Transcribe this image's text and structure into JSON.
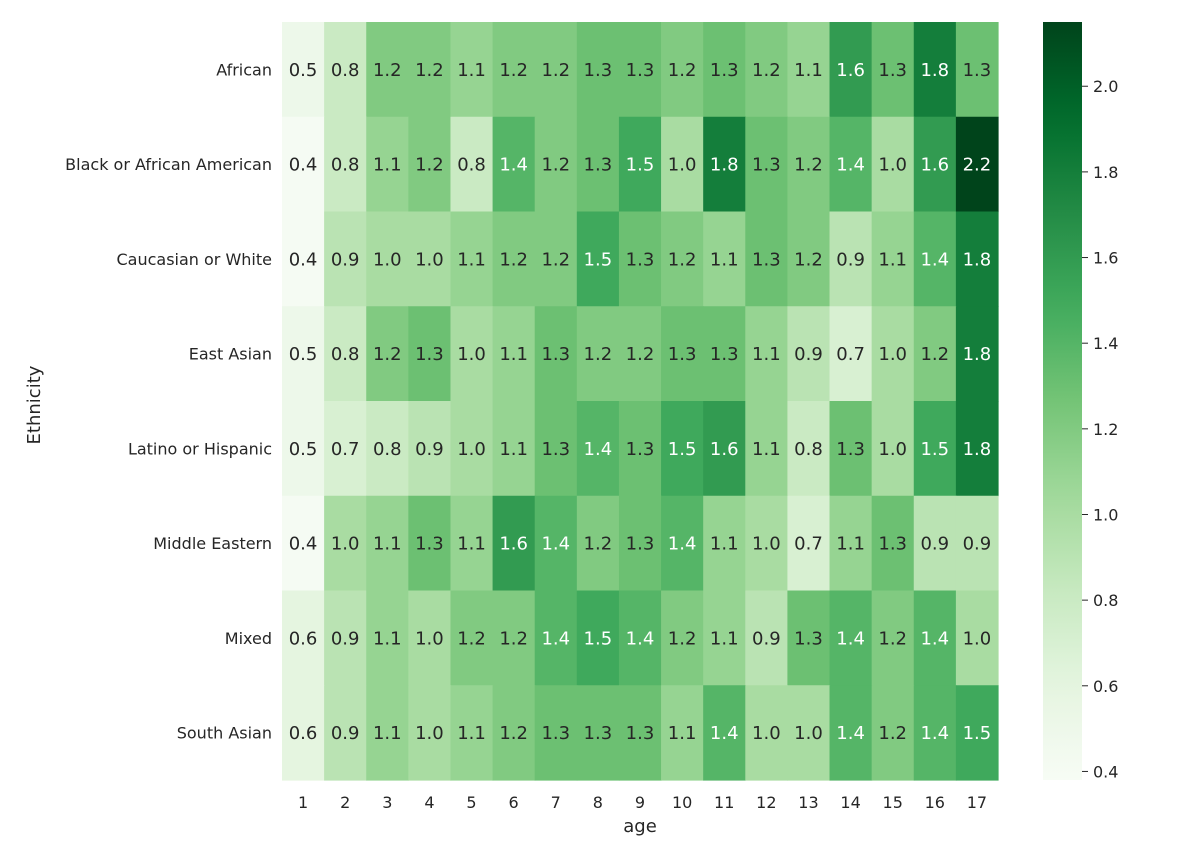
{
  "chart_data": {
    "type": "heatmap",
    "title": "",
    "xlabel": "age",
    "ylabel": "Ethnicity",
    "x_categories": [
      "1",
      "2",
      "3",
      "4",
      "5",
      "6",
      "7",
      "8",
      "9",
      "10",
      "11",
      "12",
      "13",
      "14",
      "15",
      "16",
      "17"
    ],
    "y_categories": [
      "African",
      "Black or African American",
      "Caucasian or White",
      "East Asian",
      "Latino or Hispanic",
      "Middle Eastern",
      "Mixed",
      "South Asian"
    ],
    "values": [
      [
        0.5,
        0.8,
        1.2,
        1.2,
        1.1,
        1.2,
        1.2,
        1.3,
        1.3,
        1.2,
        1.3,
        1.2,
        1.1,
        1.6,
        1.3,
        1.8,
        1.3
      ],
      [
        0.4,
        0.8,
        1.1,
        1.2,
        0.8,
        1.4,
        1.2,
        1.3,
        1.5,
        1.0,
        1.8,
        1.3,
        1.2,
        1.4,
        1.0,
        1.6,
        2.2
      ],
      [
        0.4,
        0.9,
        1.0,
        1.0,
        1.1,
        1.2,
        1.2,
        1.5,
        1.3,
        1.2,
        1.1,
        1.3,
        1.2,
        0.9,
        1.1,
        1.4,
        1.8
      ],
      [
        0.5,
        0.8,
        1.2,
        1.3,
        1.0,
        1.1,
        1.3,
        1.2,
        1.2,
        1.3,
        1.3,
        1.1,
        0.9,
        0.7,
        1.0,
        1.2,
        1.8
      ],
      [
        0.5,
        0.7,
        0.8,
        0.9,
        1.0,
        1.1,
        1.3,
        1.4,
        1.3,
        1.5,
        1.6,
        1.1,
        0.8,
        1.3,
        1.0,
        1.5,
        1.8
      ],
      [
        0.4,
        1.0,
        1.1,
        1.3,
        1.1,
        1.6,
        1.4,
        1.2,
        1.3,
        1.4,
        1.1,
        1.0,
        0.7,
        1.1,
        1.3,
        0.9,
        0.9
      ],
      [
        0.6,
        0.9,
        1.1,
        1.0,
        1.2,
        1.2,
        1.4,
        1.5,
        1.4,
        1.2,
        1.1,
        0.9,
        1.3,
        1.4,
        1.2,
        1.4,
        1.0
      ],
      [
        0.6,
        0.9,
        1.1,
        1.0,
        1.1,
        1.2,
        1.3,
        1.3,
        1.3,
        1.1,
        1.4,
        1.0,
        1.0,
        1.4,
        1.2,
        1.4,
        1.5
      ]
    ],
    "colormap": "Greens",
    "vmin": 0.38,
    "vmax": 2.15,
    "colorbar_ticks": [
      "0.4",
      "0.6",
      "0.8",
      "1.0",
      "1.2",
      "1.4",
      "1.6",
      "1.8",
      "2.0"
    ],
    "colorbar_tick_values": [
      0.4,
      0.6,
      0.8,
      1.0,
      1.2,
      1.4,
      1.6,
      1.8,
      2.0
    ],
    "annotations": true,
    "colors": {
      "text_dark": "#262626",
      "text_light": "#ffffff",
      "axis_text": "#262626"
    }
  }
}
